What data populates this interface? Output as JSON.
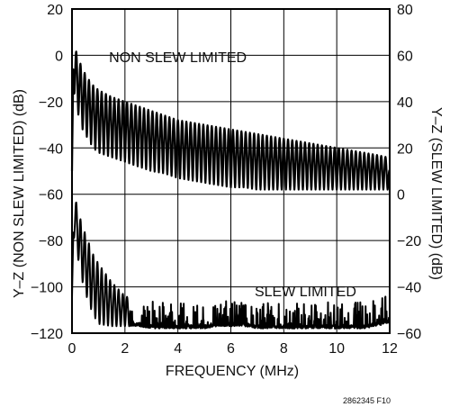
{
  "chart_data": {
    "type": "line",
    "xlabel": "FREQUENCY (MHz)",
    "ylabel_left": "Y–Z (NON SLEW LIMITED) (dB)",
    "ylabel_right": "Y–Z (SLEW LIMITED) (dB)",
    "xlim": [
      0,
      12
    ],
    "ylim_left": [
      -120,
      20
    ],
    "ylim_right": [
      -60,
      80
    ],
    "x_ticks": [
      "0",
      "2",
      "4",
      "6",
      "8",
      "10",
      "12"
    ],
    "y_ticks_left": [
      "20",
      "0",
      "−20",
      "−40",
      "−60",
      "−80",
      "−100",
      "−120"
    ],
    "y_ticks_right": [
      "80",
      "60",
      "40",
      "20",
      "0",
      "−20",
      "−40",
      "−60"
    ],
    "grid": true,
    "annotations": [
      {
        "text": "NON SLEW LIMITED",
        "x": 1.4,
        "y": 57
      },
      {
        "text": "SLEW LIMITED",
        "x": 6.9,
        "y": -44
      }
    ],
    "series": [
      {
        "name": "NON SLEW LIMITED",
        "axis": "right",
        "x": [
          0,
          0.05,
          0.1,
          0.15,
          0.2,
          0.3,
          0.4,
          0.6,
          0.8,
          1,
          1.5,
          2,
          2.5,
          3,
          3.5,
          4,
          4.5,
          5,
          5.5,
          6,
          6.5,
          7,
          7.5,
          8,
          8.5,
          9,
          9.5,
          10,
          10.5,
          11,
          11.5,
          11.9,
          12
        ],
        "envelope_top": [
          10,
          60,
          63,
          62,
          60,
          57,
          54,
          50,
          47,
          45,
          42,
          40,
          38,
          36,
          34,
          32,
          31,
          30,
          29,
          28,
          27,
          26,
          25,
          24,
          23,
          22,
          21,
          20,
          19,
          18,
          17,
          16,
          10
        ],
        "envelope_bottom": [
          0,
          50,
          40,
          38,
          36,
          32,
          28,
          24,
          20,
          18,
          16,
          14,
          12,
          10,
          9,
          7,
          6,
          5,
          4,
          3,
          3,
          2,
          2,
          2,
          2,
          2,
          2,
          2,
          2,
          2,
          2,
          2,
          2
        ]
      },
      {
        "name": "SLEW LIMITED",
        "axis": "right",
        "x": [
          0,
          0.05,
          0.1,
          0.15,
          0.2,
          0.3,
          0.4,
          0.6,
          0.8,
          1,
          1.5,
          2,
          2.5,
          3,
          3.5,
          4,
          4.5,
          5,
          5.5,
          6,
          6.5,
          7,
          7.5,
          8,
          8.5,
          9,
          9.5,
          10,
          10.5,
          11,
          11.5,
          11.9,
          12
        ],
        "envelope_top": [
          -45,
          -10,
          -2,
          -3,
          -6,
          -10,
          -14,
          -20,
          -26,
          -30,
          -38,
          -44,
          -46,
          -47,
          -47,
          -48,
          -48,
          -48,
          -48,
          -46,
          -47,
          -48,
          -48,
          -48,
          -48,
          -48,
          -48,
          -47,
          -48,
          -47,
          -46,
          -44,
          -46
        ],
        "envelope_bottom": [
          -58,
          -20,
          -18,
          -22,
          -26,
          -32,
          -38,
          -46,
          -52,
          -56,
          -57,
          -57,
          -57,
          -58,
          -58,
          -58,
          -58,
          -58,
          -57,
          -57,
          -57,
          -58,
          -58,
          -58,
          -58,
          -58,
          -58,
          -58,
          -58,
          -58,
          -57,
          -56,
          -56
        ]
      }
    ]
  },
  "figure_id": "2862345 F10"
}
